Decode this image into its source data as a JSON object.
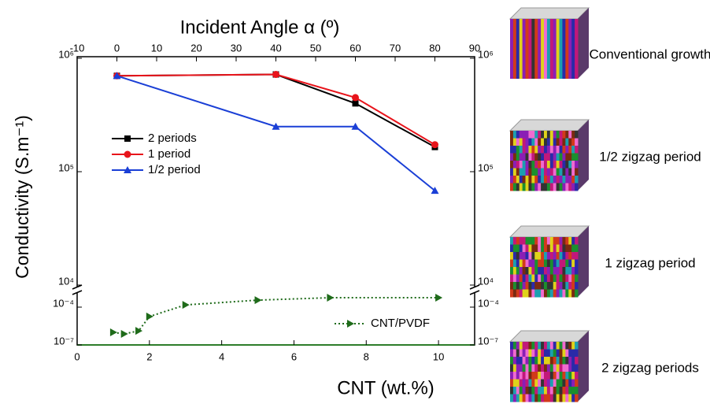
{
  "chart_data": [
    {
      "type": "line",
      "title": "Incident Angle α (º)",
      "y_label": "Conductivity (S.m⁻¹)",
      "log_y": true,
      "legend": "upper left",
      "x": [
        0,
        40,
        60,
        80
      ],
      "xlim": [
        -10,
        90
      ],
      "xticks": [
        -10,
        0,
        10,
        20,
        30,
        40,
        50,
        60,
        70,
        80,
        90
      ],
      "ylim": [
        10000,
        1000000
      ],
      "yticks": [
        {
          "value": 10000,
          "label": "10⁴"
        },
        {
          "value": 100000,
          "label": "10⁵"
        },
        {
          "value": 1000000,
          "label": "10⁶"
        }
      ],
      "series": [
        {
          "name": "2 periods",
          "color": "#000000",
          "marker": "square",
          "values": [
            700000,
            720000,
            400000,
            165000
          ]
        },
        {
          "name": "1 period",
          "color": "#e8141b",
          "marker": "circle",
          "values": [
            700000,
            720000,
            450000,
            173000
          ]
        },
        {
          "name": "1/2 period",
          "color": "#1a3fd6",
          "marker": "triangle",
          "values": [
            700000,
            250000,
            250000,
            68000
          ]
        }
      ]
    },
    {
      "type": "line",
      "x_label": "CNT (wt.%)",
      "log_y": true,
      "legend": "lower right",
      "x": [
        1.0,
        1.3,
        1.7,
        2.0,
        3.0,
        5.0,
        7.0,
        10.0
      ],
      "xlim": [
        0,
        11
      ],
      "xticks": [
        0,
        2,
        4,
        6,
        8,
        10
      ],
      "ylim": [
        1e-07,
        0.001
      ],
      "yticks": [
        {
          "value": 1e-07,
          "label": "10⁻⁷"
        },
        {
          "value": 0.0001,
          "label": "10⁻⁴"
        }
      ],
      "series": [
        {
          "name": "CNT/PVDF",
          "color": "#1f6b1a",
          "marker": "triangle-right",
          "dash": "dotted",
          "values": [
            1e-06,
            7.5e-07,
            1.3e-06,
            1.8e-05,
            0.00015,
            0.00036,
            0.00056,
            0.00056
          ]
        }
      ]
    }
  ],
  "panels": [
    "Conventional growth",
    "1/2 zigzag period",
    "1 zigzag period",
    "2 zigzag periods"
  ]
}
